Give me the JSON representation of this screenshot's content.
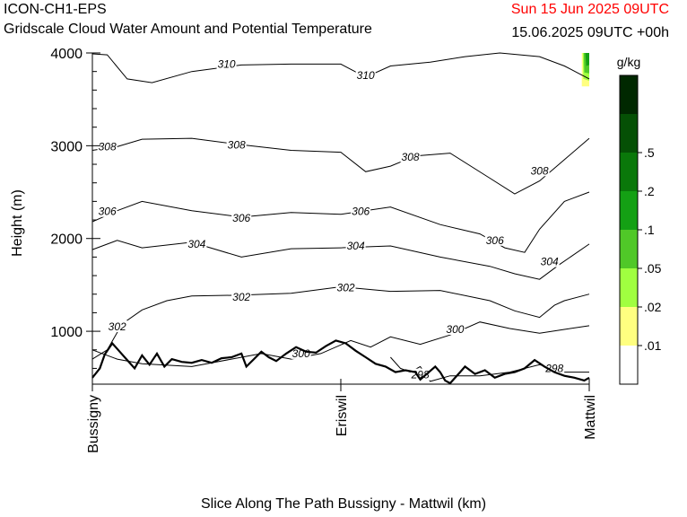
{
  "header": {
    "model": "ICON-CH1-EPS",
    "title": "Gridscale Cloud Water Amount and Potential Temperature",
    "valid_time": "Sun 15 Jun 2025 09UTC",
    "run_info": "15.06.2025 09UTC +00h"
  },
  "colors": {
    "valid_time": "#ff0000",
    "line": "#000000",
    "levels": [
      "#ffffff",
      "#ffff80",
      "#a0ff40",
      "#50c828",
      "#14a014",
      "#0a780a",
      "#055005",
      "#002800"
    ]
  },
  "chart_data": {
    "type": "contour",
    "title": "Gridscale Cloud Water Amount and Potential Temperature",
    "xlabel": "Slice Along The Path Bussigny - Mattwil (km)",
    "ylabel": "Height (m)",
    "ylim": [
      430,
      4000
    ],
    "y_ticks": [
      1000,
      2000,
      3000,
      4000
    ],
    "y_tick_labels": [
      "1000",
      "2000",
      "3000",
      "4000"
    ],
    "x_ticks": [
      0,
      0.5,
      1
    ],
    "x_tick_labels": [
      "Bussigny",
      "Eriswil",
      "Mattwil"
    ],
    "colorbar": {
      "unit": "g/kg",
      "labels": [
        ".01",
        ".02",
        ".05",
        ".1",
        ".2",
        ".5"
      ]
    },
    "contours": [
      {
        "level": 298,
        "label": "298",
        "label_at": [
          [
            0.66,
            530
          ],
          [
            0.93,
            600
          ]
        ],
        "points": [
          [
            0.6,
            720
          ],
          [
            0.62,
            600
          ],
          [
            0.64,
            560
          ],
          [
            0.66,
            620
          ],
          [
            0.68,
            460
          ],
          [
            0.72,
            520
          ],
          [
            0.78,
            520
          ],
          [
            0.84,
            560
          ],
          [
            0.9,
            640
          ],
          [
            0.95,
            560
          ],
          [
            1.0,
            560
          ]
        ]
      },
      {
        "level": 300,
        "label": "300",
        "label_at": [
          [
            0.42,
            760
          ],
          [
            0.73,
            1020
          ]
        ],
        "points": [
          [
            0.0,
            800
          ],
          [
            0.05,
            700
          ],
          [
            0.1,
            650
          ],
          [
            0.2,
            620
          ],
          [
            0.28,
            700
          ],
          [
            0.34,
            760
          ],
          [
            0.4,
            700
          ],
          [
            0.46,
            760
          ],
          [
            0.52,
            900
          ],
          [
            0.56,
            830
          ],
          [
            0.6,
            940
          ],
          [
            0.66,
            860
          ],
          [
            0.72,
            960
          ],
          [
            0.78,
            1100
          ],
          [
            0.84,
            1030
          ],
          [
            0.9,
            980
          ],
          [
            0.95,
            1020
          ],
          [
            1.0,
            1060
          ]
        ]
      },
      {
        "level": 302,
        "label": "302",
        "label_at": [
          [
            0.05,
            1050
          ],
          [
            0.3,
            1370
          ],
          [
            0.51,
            1470
          ]
        ],
        "points": [
          [
            0.0,
            700
          ],
          [
            0.03,
            800
          ],
          [
            0.06,
            1080
          ],
          [
            0.1,
            1230
          ],
          [
            0.15,
            1330
          ],
          [
            0.2,
            1380
          ],
          [
            0.3,
            1390
          ],
          [
            0.4,
            1410
          ],
          [
            0.5,
            1480
          ],
          [
            0.6,
            1430
          ],
          [
            0.7,
            1440
          ],
          [
            0.8,
            1330
          ],
          [
            0.85,
            1220
          ],
          [
            0.9,
            1150
          ],
          [
            0.93,
            1280
          ],
          [
            0.95,
            1330
          ],
          [
            1.0,
            1400
          ]
        ]
      },
      {
        "level": 304,
        "label": "304",
        "label_at": [
          [
            0.21,
            1940
          ],
          [
            0.53,
            1920
          ],
          [
            0.92,
            1750
          ]
        ],
        "points": [
          [
            0.0,
            1880
          ],
          [
            0.05,
            1980
          ],
          [
            0.1,
            1900
          ],
          [
            0.2,
            1960
          ],
          [
            0.3,
            1800
          ],
          [
            0.4,
            1890
          ],
          [
            0.5,
            1900
          ],
          [
            0.6,
            1920
          ],
          [
            0.7,
            1800
          ],
          [
            0.8,
            1700
          ],
          [
            0.85,
            1620
          ],
          [
            0.9,
            1560
          ],
          [
            0.94,
            1720
          ],
          [
            1.0,
            1940
          ]
        ]
      },
      {
        "level": 306,
        "label": "306",
        "label_at": [
          [
            0.03,
            2290
          ],
          [
            0.3,
            2220
          ],
          [
            0.54,
            2290
          ],
          [
            0.81,
            1980
          ]
        ],
        "points": [
          [
            0.0,
            2180
          ],
          [
            0.05,
            2300
          ],
          [
            0.1,
            2400
          ],
          [
            0.2,
            2300
          ],
          [
            0.3,
            2230
          ],
          [
            0.4,
            2280
          ],
          [
            0.5,
            2260
          ],
          [
            0.6,
            2340
          ],
          [
            0.7,
            2150
          ],
          [
            0.78,
            2050
          ],
          [
            0.83,
            1900
          ],
          [
            0.87,
            1850
          ],
          [
            0.9,
            2100
          ],
          [
            0.95,
            2400
          ],
          [
            1.0,
            2500
          ]
        ]
      },
      {
        "level": 308,
        "label": "308",
        "label_at": [
          [
            0.03,
            2990
          ],
          [
            0.29,
            3010
          ],
          [
            0.64,
            2880
          ],
          [
            0.9,
            2730
          ]
        ],
        "points": [
          [
            0.0,
            2950
          ],
          [
            0.05,
            2990
          ],
          [
            0.1,
            3070
          ],
          [
            0.2,
            3080
          ],
          [
            0.3,
            3010
          ],
          [
            0.4,
            2950
          ],
          [
            0.5,
            2930
          ],
          [
            0.55,
            2720
          ],
          [
            0.6,
            2780
          ],
          [
            0.65,
            2890
          ],
          [
            0.72,
            2920
          ],
          [
            0.8,
            2650
          ],
          [
            0.85,
            2480
          ],
          [
            0.9,
            2620
          ],
          [
            0.95,
            2850
          ],
          [
            1.0,
            3080
          ]
        ]
      },
      {
        "level": 310,
        "label": "310",
        "label_at": [
          [
            0.27,
            3880
          ],
          [
            0.55,
            3760
          ]
        ],
        "points": [
          [
            0.0,
            3990
          ],
          [
            0.03,
            3980
          ],
          [
            0.07,
            3720
          ],
          [
            0.12,
            3680
          ],
          [
            0.2,
            3800
          ],
          [
            0.3,
            3870
          ],
          [
            0.4,
            3880
          ],
          [
            0.5,
            3880
          ],
          [
            0.55,
            3740
          ],
          [
            0.6,
            3860
          ],
          [
            0.68,
            3900
          ],
          [
            0.75,
            3960
          ],
          [
            0.82,
            4000
          ],
          [
            0.9,
            3960
          ],
          [
            0.95,
            3860
          ],
          [
            1.0,
            3720
          ]
        ]
      }
    ],
    "terrain": {
      "points": [
        [
          0.0,
          500
        ],
        [
          0.015,
          600
        ],
        [
          0.025,
          750
        ],
        [
          0.04,
          870
        ],
        [
          0.055,
          780
        ],
        [
          0.07,
          690
        ],
        [
          0.085,
          600
        ],
        [
          0.1,
          740
        ],
        [
          0.115,
          640
        ],
        [
          0.13,
          760
        ],
        [
          0.145,
          620
        ],
        [
          0.16,
          700
        ],
        [
          0.18,
          670
        ],
        [
          0.2,
          660
        ],
        [
          0.22,
          690
        ],
        [
          0.24,
          660
        ],
        [
          0.26,
          710
        ],
        [
          0.28,
          720
        ],
        [
          0.3,
          760
        ],
        [
          0.31,
          620
        ],
        [
          0.325,
          700
        ],
        [
          0.34,
          780
        ],
        [
          0.355,
          720
        ],
        [
          0.37,
          680
        ],
        [
          0.39,
          760
        ],
        [
          0.41,
          830
        ],
        [
          0.43,
          780
        ],
        [
          0.45,
          770
        ],
        [
          0.47,
          840
        ],
        [
          0.49,
          900
        ],
        [
          0.51,
          870
        ],
        [
          0.53,
          790
        ],
        [
          0.55,
          720
        ],
        [
          0.57,
          650
        ],
        [
          0.59,
          620
        ],
        [
          0.61,
          560
        ],
        [
          0.63,
          580
        ],
        [
          0.65,
          560
        ],
        [
          0.66,
          480
        ],
        [
          0.69,
          620
        ],
        [
          0.7,
          560
        ],
        [
          0.71,
          470
        ],
        [
          0.72,
          440
        ],
        [
          0.74,
          560
        ],
        [
          0.75,
          620
        ],
        [
          0.77,
          540
        ],
        [
          0.79,
          580
        ],
        [
          0.81,
          500
        ],
        [
          0.83,
          540
        ],
        [
          0.85,
          560
        ],
        [
          0.87,
          600
        ],
        [
          0.89,
          690
        ],
        [
          0.91,
          620
        ],
        [
          0.93,
          560
        ],
        [
          0.95,
          520
        ],
        [
          0.97,
          500
        ],
        [
          0.99,
          470
        ],
        [
          1.0,
          500
        ]
      ]
    },
    "cloud": [
      {
        "color_index": 1,
        "points": [
          [
            0.985,
            4000
          ],
          [
            0.985,
            3640
          ],
          [
            1.0,
            3640
          ],
          [
            1.0,
            4000
          ]
        ]
      },
      {
        "color_index": 2,
        "points": [
          [
            0.987,
            4000
          ],
          [
            0.988,
            3720
          ],
          [
            1.0,
            3700
          ],
          [
            1.0,
            4000
          ]
        ]
      },
      {
        "color_index": 3,
        "points": [
          [
            0.989,
            4000
          ],
          [
            0.99,
            3790
          ],
          [
            1.0,
            3780
          ],
          [
            1.0,
            4000
          ]
        ]
      },
      {
        "color_index": 4,
        "points": [
          [
            0.992,
            4000
          ],
          [
            0.994,
            3860
          ],
          [
            1.0,
            3870
          ],
          [
            1.0,
            4000
          ]
        ]
      }
    ]
  }
}
